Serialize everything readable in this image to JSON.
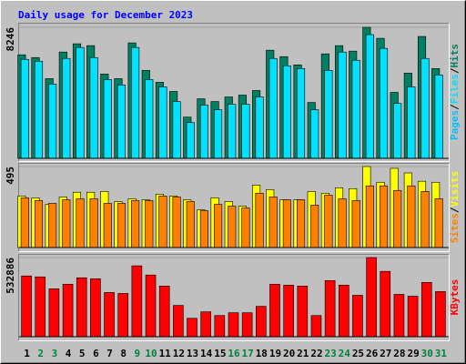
{
  "chart_data": [
    {
      "type": "bar",
      "title": "Daily usage for December 2023",
      "ylim": [
        0,
        8246
      ],
      "yticks": [
        8246
      ],
      "legend_separator": "/",
      "series": [
        {
          "name": "Pages",
          "color": "#00c0ff"
        },
        {
          "name": "Files",
          "color": "#0000ff",
          "fill": "#00e0ff",
          "values": [
            6228,
            6113,
            4671,
            6286,
            6977,
            6343,
            4959,
            4613,
            6977,
            4959,
            4498,
            3575,
            2249,
            3344,
            3056,
            3402,
            3402,
            3864,
            6286,
            5824,
            5651,
            3056,
            5536,
            6689,
            6170,
            7785,
            6920,
            3460,
            4498,
            6286,
            5247
          ]
        },
        {
          "name": "Hits",
          "color": "#008040",
          "fill": "#008060",
          "values": [
            6516,
            6343,
            5017,
            6689,
            7208,
            7093,
            5305,
            5017,
            7266,
            5536,
            4786,
            4210,
            2595,
            3748,
            3575,
            3864,
            3979,
            4267,
            6804,
            6401,
            5882,
            3517,
            6574,
            7093,
            6747,
            8246,
            7554,
            4152,
            5363,
            7669,
            5651
          ]
        }
      ]
    },
    {
      "type": "bar",
      "ylim": [
        0,
        495
      ],
      "yticks": [
        495
      ],
      "legend_separator": "/",
      "series": [
        {
          "name": "Sites",
          "color": "#ff8000",
          "values": [
            304,
            287,
            270,
            292,
            298,
            298,
            270,
            270,
            287,
            287,
            315,
            309,
            281,
            225,
            264,
            253,
            242,
            332,
            309,
            292,
            292,
            259,
            320,
            298,
            287,
            377,
            377,
            349,
            377,
            343,
            298
          ]
        },
        {
          "name": "Visits",
          "color": "#ffff00",
          "values": [
            315,
            304,
            264,
            309,
            338,
            338,
            343,
            281,
            298,
            292,
            326,
            315,
            292,
            231,
            304,
            281,
            253,
            382,
            354,
            292,
            292,
            343,
            332,
            365,
            360,
            495,
            399,
            484,
            456,
            405,
            399
          ]
        }
      ]
    },
    {
      "type": "bar",
      "ylim": [
        0,
        532886
      ],
      "yticks": [
        532886
      ],
      "categories": [
        "1",
        "2",
        "3",
        "4",
        "5",
        "6",
        "7",
        "8",
        "9",
        "10",
        "11",
        "12",
        "13",
        "14",
        "15",
        "16",
        "17",
        "18",
        "19",
        "20",
        "21",
        "22",
        "23",
        "24",
        "25",
        "26",
        "27",
        "28",
        "29",
        "30",
        "31"
      ],
      "category_colors": [
        "#000000",
        "#008040",
        "#008040",
        "#000000",
        "#000000",
        "#000000",
        "#000000",
        "#000000",
        "#008040",
        "#008040",
        "#000000",
        "#000000",
        "#000000",
        "#000000",
        "#000000",
        "#008040",
        "#008040",
        "#000000",
        "#000000",
        "#000000",
        "#000000",
        "#000000",
        "#008040",
        "#008040",
        "#000000",
        "#000000",
        "#000000",
        "#000000",
        "#000000",
        "#008040",
        "#008040"
      ],
      "series": [
        {
          "name": "KBytes",
          "color": "#ff0000",
          "values": [
            408959,
            402763,
            322210,
            353192,
            396567,
            390370,
            297425,
            291228,
            477119,
            415155,
            340799,
            210676,
            123927,
            167301,
            142517,
            161105,
            161105,
            204479,
            353192,
            346996,
            340799,
            142517,
            377977,
            346996,
            278835,
            532886,
            439942,
            285032,
            272639,
            365585,
            303621
          ]
        }
      ]
    }
  ]
}
